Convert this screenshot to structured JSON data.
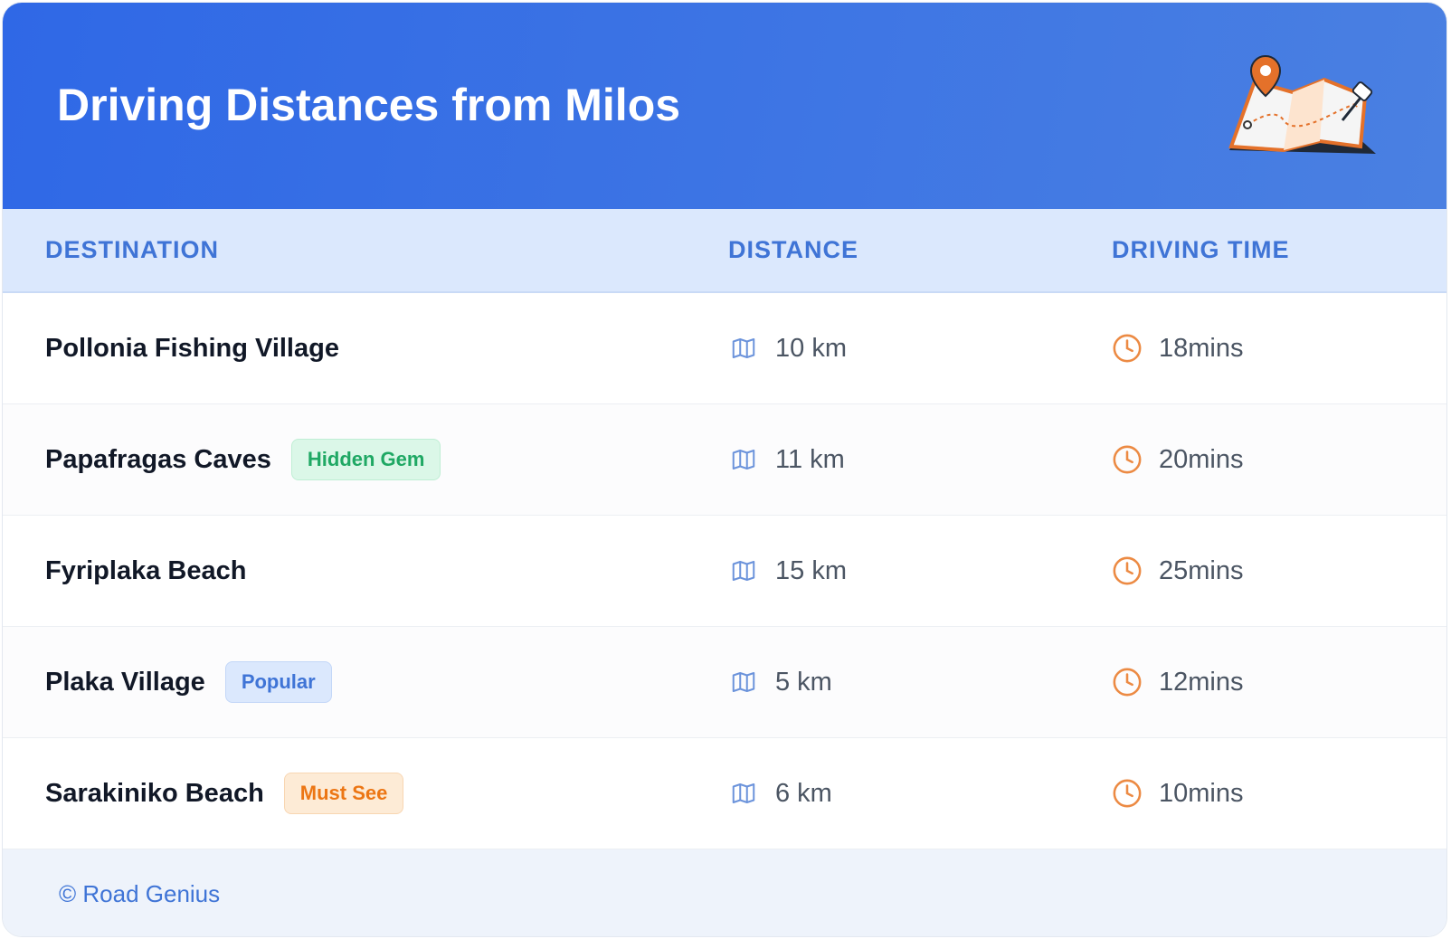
{
  "header": {
    "title": "Driving Distances from Milos"
  },
  "table": {
    "columns": [
      "DESTINATION",
      "DISTANCE",
      "DRIVING TIME"
    ],
    "rows": [
      {
        "destination": "Pollonia Fishing Village",
        "distance": "10 km",
        "time": "18mins"
      },
      {
        "destination": "Papafragas Caves",
        "badge": "Hidden Gem",
        "distance": "11 km",
        "time": "20mins"
      },
      {
        "destination": "Fyriplaka Beach",
        "distance": "15 km",
        "time": "25mins"
      },
      {
        "destination": "Plaka Village",
        "badge": "Popular",
        "distance": "5 km",
        "time": "12mins"
      },
      {
        "destination": "Sarakiniko Beach",
        "badge": "Must See",
        "distance": "6 km",
        "time": "10mins"
      }
    ]
  },
  "footer": {
    "text": "© Road Genius"
  }
}
